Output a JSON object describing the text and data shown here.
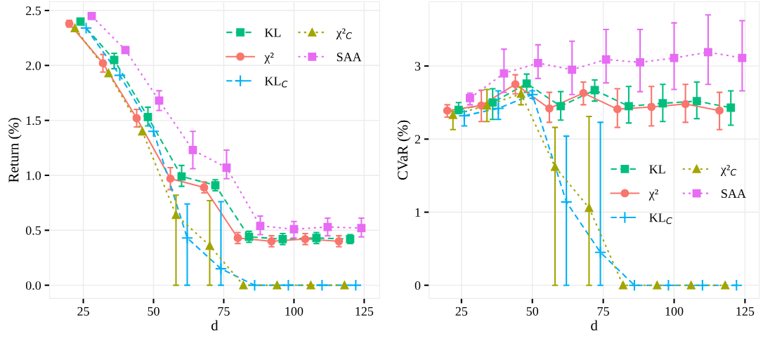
{
  "chart_data": [
    {
      "type": "line",
      "xlabel": "d",
      "ylabel": "Return (%)",
      "xlim": [
        13,
        130.5
      ],
      "ylim": [
        -0.12,
        2.58
      ],
      "xticks": [
        25,
        50,
        75,
        100,
        125
      ],
      "yticks": [
        {
          "value": 0,
          "label": "0.0"
        },
        {
          "value": 0.5,
          "label": "0.5"
        },
        {
          "value": 1,
          "label": "1.0"
        },
        {
          "value": 1.5,
          "label": "1.5"
        },
        {
          "value": 2,
          "label": "2.0"
        },
        {
          "value": 2.5,
          "label": "2.5"
        }
      ],
      "grid": true,
      "legend": "top right",
      "series": [
        {
          "name": "KL",
          "color": "#00bf7d",
          "marker": "square",
          "line_style": "dashed",
          "x": [
            24,
            36,
            48,
            60,
            72,
            84,
            96,
            108,
            120
          ],
          "values": [
            2.4,
            2.05,
            1.53,
            0.99,
            0.91,
            0.44,
            0.42,
            0.43,
            0.42
          ],
          "errors": [
            [
              2.37,
              2.43
            ],
            [
              1.97,
              2.11
            ],
            [
              1.45,
              1.62
            ],
            [
              0.9,
              1.09
            ],
            [
              0.86,
              0.96
            ],
            [
              0.39,
              0.49
            ],
            [
              0.37,
              0.47
            ],
            [
              0.38,
              0.48
            ],
            [
              0.38,
              0.46
            ]
          ]
        },
        {
          "name": "χ²",
          "color": "#f8766d",
          "marker": "circle",
          "line_style": "solid",
          "x": [
            20,
            32,
            44,
            56,
            68,
            80,
            92,
            104,
            116
          ],
          "values": [
            2.38,
            2.02,
            1.52,
            0.97,
            0.89,
            0.43,
            0.4,
            0.42,
            0.4
          ],
          "errors": [
            [
              2.35,
              2.41
            ],
            [
              1.94,
              2.1
            ],
            [
              1.44,
              1.6
            ],
            [
              0.87,
              1.07
            ],
            [
              0.84,
              0.94
            ],
            [
              0.38,
              0.48
            ],
            [
              0.35,
              0.45
            ],
            [
              0.37,
              0.47
            ],
            [
              0.35,
              0.45
            ]
          ]
        },
        {
          "name": "KL$_{C}$",
          "color": "#00b0f6",
          "marker": "cross",
          "line_style": "dashed",
          "x": [
            26,
            38,
            50,
            62,
            74,
            86,
            98,
            110,
            122
          ],
          "values": [
            2.34,
            1.91,
            1.4,
            0.43,
            0.15,
            0,
            0,
            0,
            0
          ],
          "errors": [
            null,
            null,
            null,
            [
              0,
              0.74
            ],
            [
              0,
              0.76
            ],
            null,
            null,
            null,
            null
          ]
        },
        {
          "name": "χ²$_{C}$",
          "color": "#a3a500",
          "marker": "triangle",
          "line_style": "dotted",
          "x": [
            22,
            34,
            46,
            58,
            70,
            82,
            94,
            106,
            118
          ],
          "values": [
            2.34,
            1.93,
            1.4,
            0.64,
            0.36,
            0,
            0,
            0,
            0
          ],
          "errors": [
            null,
            null,
            null,
            [
              0,
              0.82
            ],
            [
              0,
              0.77
            ],
            null,
            null,
            null,
            null
          ]
        },
        {
          "name": "SAA",
          "color": "#e76bf3",
          "marker": "square",
          "line_style": "dotted",
          "x": [
            28,
            40,
            52,
            64,
            76,
            88,
            100,
            112,
            124
          ],
          "values": [
            2.45,
            2.14,
            1.68,
            1.23,
            1.07,
            0.54,
            0.51,
            0.53,
            0.52
          ],
          "errors": [
            [
              2.43,
              2.47
            ],
            [
              2.11,
              2.17
            ],
            [
              1.59,
              1.77
            ],
            [
              1.06,
              1.4
            ],
            [
              0.97,
              1.23
            ],
            [
              0.46,
              0.63
            ],
            [
              0.43,
              0.58
            ],
            [
              0.45,
              0.61
            ],
            [
              0.44,
              0.61
            ]
          ]
        }
      ]
    },
    {
      "type": "line",
      "xlabel": "d",
      "ylabel": "CVaR (%)",
      "xlim": [
        13.6,
        130
      ],
      "ylim": [
        -0.18,
        3.88
      ],
      "xticks": [
        25,
        50,
        75,
        100,
        125
      ],
      "yticks": [
        0,
        1,
        2,
        3
      ],
      "grid": true,
      "legend": "right",
      "series": [
        {
          "name": "KL",
          "color": "#00bf7d",
          "marker": "square",
          "line_style": "dashed",
          "x": [
            24,
            36,
            48,
            60,
            72,
            84,
            96,
            108,
            120
          ],
          "values": [
            2.4,
            2.5,
            2.76,
            2.45,
            2.67,
            2.45,
            2.49,
            2.52,
            2.43
          ],
          "errors": [
            [
              2.35,
              2.5
            ],
            [
              2.27,
              2.69
            ],
            [
              2.64,
              2.89
            ],
            [
              2.26,
              2.65
            ],
            [
              2.52,
              2.81
            ],
            [
              2.22,
              2.72
            ],
            [
              2.24,
              2.75
            ],
            [
              2.28,
              2.78
            ],
            [
              2.19,
              2.66
            ]
          ]
        },
        {
          "name": "χ²",
          "color": "#f8766d",
          "marker": "circle",
          "line_style": "solid",
          "x": [
            20,
            32,
            44,
            56,
            68,
            80,
            92,
            104,
            116
          ],
          "values": [
            2.39,
            2.46,
            2.75,
            2.42,
            2.63,
            2.41,
            2.44,
            2.48,
            2.39
          ],
          "errors": [
            [
              2.3,
              2.47
            ],
            [
              2.24,
              2.67
            ],
            [
              2.62,
              2.88
            ],
            [
              2.23,
              2.64
            ],
            [
              2.47,
              2.78
            ],
            [
              2.16,
              2.69
            ],
            [
              2.18,
              2.72
            ],
            [
              2.23,
              2.75
            ],
            [
              2.13,
              2.64
            ]
          ]
        },
        {
          "name": "KL$_{C}$",
          "color": "#00b0f6",
          "marker": "cross",
          "line_style": "dashed",
          "x": [
            26,
            38,
            50,
            62,
            74,
            86,
            98,
            110,
            122
          ],
          "values": [
            2.32,
            2.42,
            2.61,
            1.14,
            0.45,
            0,
            0,
            0,
            0
          ],
          "errors": [
            [
              2.18,
              2.38
            ],
            [
              2.27,
              2.66
            ],
            [
              2.56,
              2.66
            ],
            [
              0,
              2.04
            ],
            [
              0,
              2.23
            ],
            null,
            null,
            null,
            null
          ]
        },
        {
          "name": "χ²$_{C}$",
          "color": "#a3a500",
          "marker": "triangle",
          "line_style": "dotted",
          "x": [
            22,
            34,
            46,
            58,
            70,
            82,
            94,
            106,
            118
          ],
          "values": [
            2.33,
            2.46,
            2.62,
            1.62,
            1.06,
            0,
            0,
            0,
            0
          ],
          "errors": [
            [
              2.13,
              2.38
            ],
            [
              2.24,
              2.68
            ],
            [
              2.47,
              2.71
            ],
            [
              0,
              2.16
            ],
            [
              0,
              2.31
            ],
            null,
            null,
            null,
            null
          ]
        },
        {
          "name": "SAA",
          "color": "#e76bf3",
          "marker": "square",
          "line_style": "dotted",
          "x": [
            28,
            40,
            52,
            64,
            76,
            88,
            100,
            112,
            124
          ],
          "values": [
            2.56,
            2.9,
            3.04,
            2.95,
            3.09,
            3.05,
            3.11,
            3.19,
            3.11
          ],
          "errors": [
            [
              2.47,
              2.63
            ],
            [
              2.64,
              3.23
            ],
            [
              2.83,
              3.29
            ],
            [
              2.61,
              3.34
            ],
            [
              2.77,
              3.5
            ],
            [
              2.65,
              3.5
            ],
            [
              2.68,
              3.59
            ],
            [
              2.75,
              3.7
            ],
            [
              2.66,
              3.62
            ]
          ]
        }
      ]
    }
  ]
}
